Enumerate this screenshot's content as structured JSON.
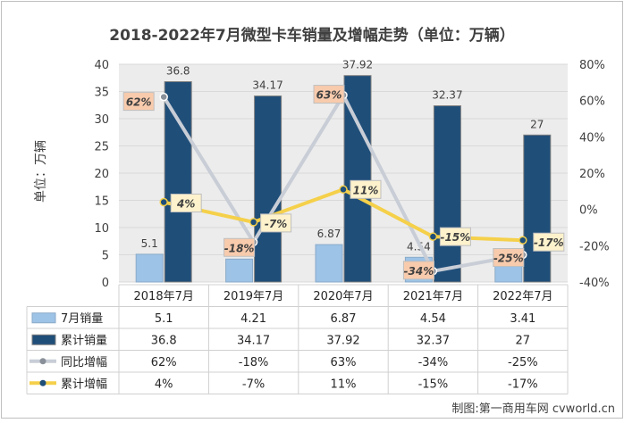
{
  "colors": {
    "monthly_fill": "#9dc3e6",
    "monthly_stroke": "#8aaac8",
    "cumulative_fill": "#1f4e79",
    "cumulative_stroke": "#7f7f7f",
    "yoy_line": "#c8cdd6",
    "yoy_marker": "#8a9099",
    "cum_growth_line": "#f5d04a",
    "cum_growth_marker": "#1f4e79",
    "yoy_label_bg": "#f8cbad",
    "cum_label_bg": "#fdf2cc",
    "plot_bg": "#ececec",
    "grid": "#d9d9d9",
    "title_text": "#404040"
  },
  "chart_data": {
    "type": "bar",
    "title": "2018-2022年7月微型卡车销量及增幅走势（单位：万辆）",
    "ylabel": "单位：万辆",
    "ylim": [
      0,
      40
    ],
    "y_ticks": [
      "0",
      "5",
      "10",
      "15",
      "20",
      "25",
      "30",
      "35",
      "40"
    ],
    "y2lim": [
      -40,
      80
    ],
    "y2_ticks": [
      "-40%",
      "-20%",
      "0%",
      "20%",
      "40%",
      "60%",
      "80%"
    ],
    "categories": [
      "2018年7月",
      "2019年7月",
      "2020年7月",
      "2021年7月",
      "2022年7月"
    ],
    "series": [
      {
        "name": "7月销量",
        "kind": "bar",
        "axis": "left",
        "values": [
          5.1,
          4.21,
          6.87,
          4.54,
          3.41
        ],
        "labels": [
          "5.1",
          "4.21",
          "6.87",
          "4.54",
          "3.41"
        ]
      },
      {
        "name": "累计销量",
        "kind": "bar",
        "axis": "left",
        "values": [
          36.8,
          34.17,
          37.92,
          32.37,
          27
        ],
        "labels": [
          "36.8",
          "34.17",
          "37.92",
          "32.37",
          "27"
        ]
      },
      {
        "name": "同比增幅",
        "kind": "line",
        "axis": "right",
        "values": [
          62,
          -18,
          63,
          -34,
          -25
        ],
        "labels": [
          "62%",
          "-18%",
          "63%",
          "-34%",
          "-25%"
        ]
      },
      {
        "name": "累计增幅",
        "kind": "line",
        "axis": "right",
        "values": [
          4,
          -7,
          11,
          -15,
          -17
        ],
        "labels": [
          "4%",
          "-7%",
          "11%",
          "-15%",
          "-17%"
        ]
      }
    ],
    "grid": true,
    "legend": "data-table-below"
  },
  "source": "制图:第一商用车网 cvworld.cn"
}
